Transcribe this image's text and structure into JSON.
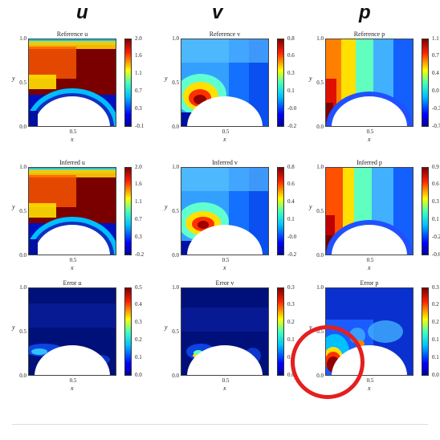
{
  "columns": [
    "u",
    "v",
    "p"
  ],
  "axes": {
    "y_label": "y",
    "x_label": "x",
    "y_ticks": [
      "1.0",
      "0.5",
      "0.0"
    ],
    "x_tick": "0.5"
  },
  "panels": [
    {
      "title": "Reference u",
      "cbar": [
        "2.0",
        "1.6",
        "1.1",
        "0.7",
        "0.3",
        "-0.1"
      ],
      "map": "ref_u"
    },
    {
      "title": "Reference v",
      "cbar": [
        "0.8",
        "0.6",
        "0.3",
        "0.1",
        "-0.0",
        "-0.2"
      ],
      "map": "ref_v"
    },
    {
      "title": "Reference p",
      "cbar": [
        "1.1",
        "0.7",
        "0.4",
        "0.0",
        "-0.3",
        "-0.7"
      ],
      "map": "ref_p"
    },
    {
      "title": "Inferred u",
      "cbar": [
        "2.0",
        "1.6",
        "1.1",
        "0.7",
        "0.3",
        "-0.2"
      ],
      "map": "ref_u"
    },
    {
      "title": "Inferred v",
      "cbar": [
        "0.8",
        "0.6",
        "0.4",
        "0.1",
        "-0.0",
        "-0.2"
      ],
      "map": "inf_v"
    },
    {
      "title": "Inferred p",
      "cbar": [
        "0.9",
        "0.6",
        "0.3",
        "0.1",
        "-0.2",
        "-0.6"
      ],
      "map": "inf_p"
    },
    {
      "title": "Error u",
      "cbar": [
        "0.5",
        "0.4",
        "0.3",
        "0.2",
        "0.1",
        "0.0"
      ],
      "map": "err_u"
    },
    {
      "title": "Error v",
      "cbar": [
        "0.3",
        "0.3",
        "0.2",
        "0.1",
        "0.1",
        "0.0"
      ],
      "map": "err_v"
    },
    {
      "title": "Error p",
      "cbar": [
        "0.3",
        "0.2",
        "0.2",
        "0.1",
        "0.1",
        "0.0"
      ],
      "map": "err_p"
    }
  ],
  "highlight": {
    "panel": "Error p",
    "color": "#e41f1f"
  }
}
